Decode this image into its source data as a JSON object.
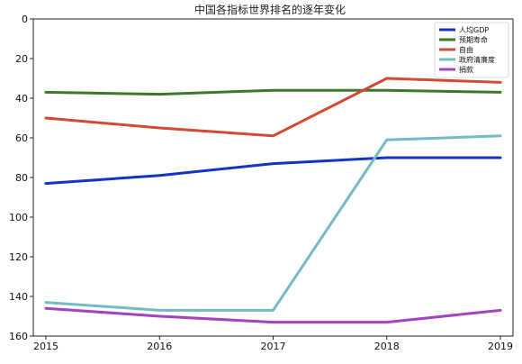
{
  "chart_data": {
    "type": "line",
    "title": "中国各指标世界排名的逐年变化",
    "xlabel": "",
    "ylabel": "",
    "x": [
      2015,
      2016,
      2017,
      2018,
      2019
    ],
    "x_ticks": [
      "2015",
      "2016",
      "2017",
      "2018",
      "2019"
    ],
    "ylim": [
      0,
      160
    ],
    "y_inverted": true,
    "y_ticks": [
      "0",
      "20",
      "40",
      "60",
      "80",
      "100",
      "120",
      "140",
      "160"
    ],
    "grid": false,
    "legend_position": "top-right",
    "series": [
      {
        "name": "人均GDP",
        "color": "#1433c4",
        "values": [
          83,
          79,
          73,
          70,
          70
        ]
      },
      {
        "name": "预期寿命",
        "color": "#3d7a28",
        "values": [
          37,
          38,
          36,
          36,
          37
        ]
      },
      {
        "name": "自由",
        "color": "#d24a33",
        "values": [
          50,
          55,
          59,
          30,
          32
        ]
      },
      {
        "name": "政府清廉度",
        "color": "#72bcc0",
        "values": [
          143,
          147,
          147,
          61,
          59
        ]
      },
      {
        "name": "捐款",
        "color": "#a244bf",
        "values": [
          146,
          150,
          153,
          153,
          147
        ]
      }
    ]
  }
}
